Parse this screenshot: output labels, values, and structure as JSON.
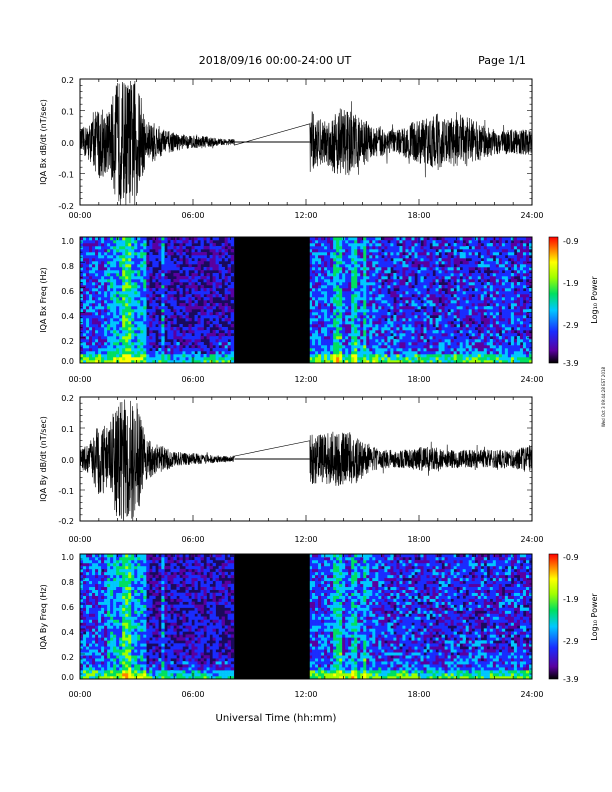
{
  "header": {
    "date_range": "2018/09/16  00:00-24:00 UT",
    "page": "Page 1/1"
  },
  "footer": {
    "xlabel": "Universal Time (hh:mm)",
    "side_note": "Wed Oct 3 09:44:28 EST 2018"
  },
  "colorbar": {
    "label": "Log₁₀ Power",
    "ticks": [
      "-0.9",
      "-1.9",
      "-2.9",
      "-3.9"
    ]
  },
  "colors": {
    "trace": "#000000",
    "gap": "#000000",
    "spec_background": "#1a0a5c",
    "colormap": [
      "#000000",
      "#5a00a0",
      "#1a2cff",
      "#00c8ff",
      "#00e060",
      "#a0ff00",
      "#ffff00",
      "#ff8000",
      "#ff0000"
    ]
  },
  "chart_data": [
    {
      "type": "line",
      "ylabel": "IQA Bx dB/dt (nT/sec)",
      "xlim": [
        0,
        24
      ],
      "ylim": [
        -0.2,
        0.2
      ],
      "x_ticks": [
        "00:00",
        "06:00",
        "12:00",
        "18:00",
        "24:00"
      ],
      "y_ticks": [
        "-0.2",
        "-0.1",
        "0.0",
        "0.1",
        "0.2"
      ],
      "data_gap_hours": [
        8.2,
        12.2
      ],
      "amplitude_envelope": {
        "x": [
          0,
          0.5,
          1,
          1.5,
          2,
          2.5,
          3,
          3.5,
          4,
          4.5,
          5,
          5.5,
          6,
          6.5,
          7,
          7.5,
          8.2,
          12.2,
          12.5,
          13,
          13.5,
          14,
          14.5,
          15,
          15.5,
          16,
          16.5,
          17,
          17.5,
          18,
          18.5,
          19,
          19.5,
          20,
          20.5,
          21,
          21.5,
          22,
          22.5,
          23,
          23.5,
          24
        ],
        "y": [
          0.04,
          0.06,
          0.12,
          0.1,
          0.2,
          0.2,
          0.2,
          0.07,
          0.06,
          0.04,
          0.03,
          0.025,
          0.02,
          0.02,
          0.015,
          0.01,
          0.01,
          0.12,
          0.08,
          0.07,
          0.1,
          0.12,
          0.09,
          0.08,
          0.05,
          0.05,
          0.04,
          0.04,
          0.06,
          0.07,
          0.08,
          0.09,
          0.07,
          0.08,
          0.08,
          0.07,
          0.05,
          0.04,
          0.04,
          0.04,
          0.04,
          0.04
        ]
      }
    },
    {
      "type": "heatmap",
      "ylabel": "IQA Bx Freq (Hz)",
      "zlabel": "Log₁₀ Power",
      "xlim": [
        0,
        24
      ],
      "ylim": [
        0,
        1.0
      ],
      "zlim": [
        -3.9,
        -0.9
      ],
      "x_ticks": [
        "00:00",
        "06:00",
        "12:00",
        "18:00",
        "24:00"
      ],
      "y_ticks": [
        "0.0",
        "0.2",
        "0.4",
        "0.6",
        "0.8",
        "1.0"
      ],
      "data_gap_hours": [
        8.2,
        12.2
      ]
    },
    {
      "type": "line",
      "ylabel": "IQA By dB/dt (nT/sec)",
      "xlim": [
        0,
        24
      ],
      "ylim": [
        -0.2,
        0.2
      ],
      "x_ticks": [
        "00:00",
        "06:00",
        "12:00",
        "18:00",
        "24:00"
      ],
      "y_ticks": [
        "-0.2",
        "-0.1",
        "0.0",
        "0.1",
        "0.2"
      ],
      "data_gap_hours": [
        8.2,
        12.2
      ],
      "amplitude_envelope": {
        "x": [
          0,
          0.5,
          1,
          1.5,
          2,
          2.5,
          3,
          3.5,
          4,
          4.5,
          5,
          5.5,
          6,
          6.5,
          7,
          7.5,
          8.2,
          12.2,
          12.5,
          13,
          13.5,
          14,
          14.5,
          15,
          15.5,
          16,
          16.5,
          17,
          17.5,
          18,
          18.5,
          19,
          19.5,
          20,
          20.5,
          21,
          21.5,
          22,
          22.5,
          23,
          23.5,
          24
        ],
        "y": [
          0.03,
          0.05,
          0.12,
          0.1,
          0.2,
          0.2,
          0.2,
          0.07,
          0.05,
          0.04,
          0.025,
          0.02,
          0.02,
          0.015,
          0.015,
          0.01,
          0.01,
          0.1,
          0.08,
          0.08,
          0.09,
          0.1,
          0.08,
          0.07,
          0.04,
          0.03,
          0.03,
          0.03,
          0.03,
          0.04,
          0.04,
          0.04,
          0.03,
          0.03,
          0.03,
          0.03,
          0.03,
          0.03,
          0.03,
          0.03,
          0.04,
          0.05
        ]
      }
    },
    {
      "type": "heatmap",
      "ylabel": "IQA By Freq (Hz)",
      "zlabel": "Log₁₀ Power",
      "xlim": [
        0,
        24
      ],
      "ylim": [
        0,
        1.0
      ],
      "zlim": [
        -3.9,
        -0.9
      ],
      "x_ticks": [
        "00:00",
        "06:00",
        "12:00",
        "18:00",
        "24:00"
      ],
      "y_ticks": [
        "0.0",
        "0.2",
        "0.4",
        "0.6",
        "0.8",
        "1.0"
      ],
      "data_gap_hours": [
        8.2,
        12.2
      ]
    }
  ]
}
